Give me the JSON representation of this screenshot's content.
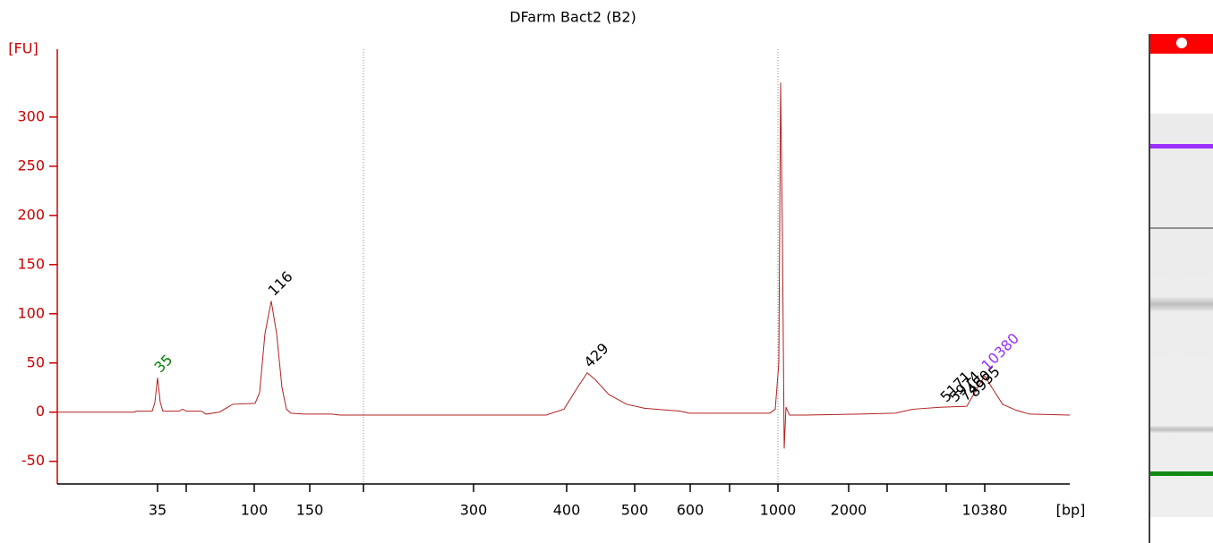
{
  "chart_data": {
    "type": "line",
    "title": "DFarm Bact2 (B2)",
    "y_axis_label": "[FU]",
    "x_axis_label": "[bp]",
    "xlim": [
      0,
      113.1
    ],
    "ylim": [
      -73,
      369
    ],
    "yticks": [
      -50,
      0,
      50,
      100,
      150,
      200,
      250,
      300
    ],
    "xticks": [
      {
        "value": 11.2,
        "label": "35"
      },
      {
        "value": 14.4,
        "label": null
      },
      {
        "value": 22.0,
        "label": "100"
      },
      {
        "value": 28.2,
        "label": "150"
      },
      {
        "value": 34.2,
        "label": null
      },
      {
        "value": 46.5,
        "label": "300"
      },
      {
        "value": 56.9,
        "label": "400"
      },
      {
        "value": 64.5,
        "label": "500"
      },
      {
        "value": 70.7,
        "label": "600"
      },
      {
        "value": 75.1,
        "label": null
      },
      {
        "value": 80.5,
        "label": "1000"
      },
      {
        "value": 88.4,
        "label": "2000"
      },
      {
        "value": 92.7,
        "label": null
      },
      {
        "value": 99.3,
        "label": null
      },
      {
        "value": 103.6,
        "label": "10380"
      }
    ],
    "vlines": [
      34.2,
      80.5
    ],
    "series": [
      {
        "name": "B2",
        "color": "#b22222",
        "x": [
          0,
          8.6,
          8.8,
          10.6,
          10.9,
          11.2,
          11.5,
          11.8,
          13.6,
          14.0,
          14.4,
          16.1,
          16.6,
          18.1,
          19.6,
          22.1,
          22.6,
          23.2,
          23.9,
          24.5,
          25.1,
          25.6,
          26.1,
          27.6,
          30.6,
          31.6,
          54.6,
          56.6,
          58.1,
          59.2,
          60.1,
          61.6,
          63.6,
          65.6,
          69.6,
          70.6,
          79.6,
          80.2,
          80.6,
          80.8,
          81.0,
          81.2,
          81.4,
          81.8,
          83.6,
          89.6,
          93.6,
          95.6,
          98.6,
          101.6,
          102.8,
          103.6,
          104.4,
          105.6,
          107.1,
          108.6,
          113.1
        ],
        "values": [
          0,
          0,
          1,
          1,
          10,
          35,
          10,
          1,
          1,
          3,
          1,
          1,
          -2,
          0,
          8,
          9,
          20,
          80,
          113,
          80,
          25,
          3,
          -1,
          -2,
          -2,
          -3,
          -3,
          3,
          25,
          40,
          33,
          18,
          8,
          4,
          1,
          -1,
          -1,
          3,
          50,
          335,
          180,
          -37,
          5,
          -3,
          -3,
          -2,
          -1,
          3,
          5,
          6,
          25,
          37,
          25,
          8,
          2,
          -2,
          -3
        ]
      }
    ],
    "annotations": [
      {
        "text": "35",
        "x": 11.2,
        "y": 35,
        "color": "#008000"
      },
      {
        "text": "116",
        "x": 23.9,
        "y": 113,
        "color": "#000000"
      },
      {
        "text": "429",
        "x": 59.2,
        "y": 40,
        "color": "#000000"
      },
      {
        "text": "5171",
        "x": 99.0,
        "y": 5,
        "color": "#000000"
      },
      {
        "text": "5974",
        "x": 100.0,
        "y": 5,
        "color": "#000000"
      },
      {
        "text": "7480",
        "x": 101.2,
        "y": 6,
        "color": "#000000"
      },
      {
        "text": "8935",
        "x": 102.2,
        "y": 10,
        "color": "#000000"
      },
      {
        "text": "10380",
        "x": 103.6,
        "y": 37,
        "color": "#9b30ff"
      }
    ]
  }
}
